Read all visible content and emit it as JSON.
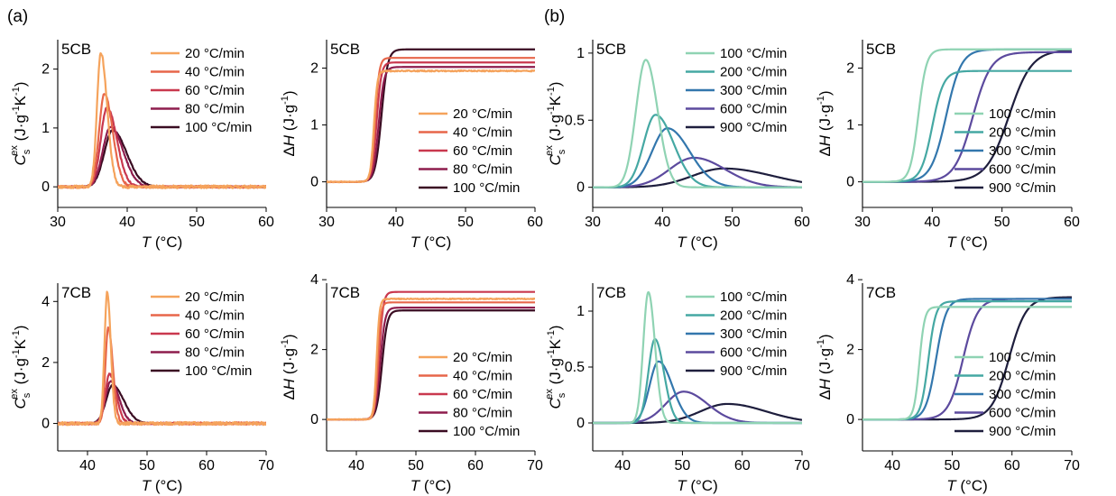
{
  "figure": {
    "panel_a_label": "(a)",
    "panel_b_label": "(b)"
  },
  "chart_data": [
    {
      "id": "a-5cb-cp",
      "type": "line",
      "panel": "(a)",
      "sample": "5CB",
      "xlabel": "T (°C)",
      "ylabel": "Cs ex (J·g-1K-1)",
      "xlim": [
        30,
        60
      ],
      "ylim": [
        -0.35,
        2.5
      ],
      "xticks": [
        30,
        40,
        50,
        60
      ],
      "yticks": [
        0,
        1,
        2
      ],
      "legend_position": "top-right",
      "grid": false,
      "series": [
        {
          "name": "20 °C/min",
          "color": "#f5a35c",
          "kind": "peak",
          "peak_x": 36.2,
          "peak_y": 2.28,
          "width_left": 0.55,
          "width_right": 0.9,
          "noise": 0.025
        },
        {
          "name": "40 °C/min",
          "color": "#e7664a",
          "kind": "peak",
          "peak_x": 36.7,
          "peak_y": 1.58,
          "width_left": 0.75,
          "width_right": 1.2,
          "noise": 0.018
        },
        {
          "name": "60 °C/min",
          "color": "#c9384e",
          "kind": "peak",
          "peak_x": 37.1,
          "peak_y": 1.35,
          "width_left": 0.9,
          "width_right": 1.4,
          "noise": 0.014
        },
        {
          "name": "80 °C/min",
          "color": "#8e1d4d",
          "kind": "peak",
          "peak_x": 37.6,
          "peak_y": 1.02,
          "width_left": 1.1,
          "width_right": 1.8,
          "noise": 0.01
        },
        {
          "name": "100 °C/min",
          "color": "#3a0c22",
          "kind": "peak",
          "peak_x": 37.9,
          "peak_y": 0.96,
          "width_left": 1.2,
          "width_right": 2.0,
          "noise": 0.008
        }
      ]
    },
    {
      "id": "a-5cb-h",
      "type": "line",
      "panel": "(a)",
      "sample": "5CB",
      "xlabel": "T (°C)",
      "ylabel": "ΔH (J·g-1)",
      "xlim": [
        30,
        60
      ],
      "ylim": [
        -0.45,
        2.5
      ],
      "xticks": [
        30,
        40,
        50,
        60
      ],
      "yticks": [
        0,
        1,
        2
      ],
      "legend_position": "bottom-right",
      "grid": false,
      "series": [
        {
          "name": "20 °C/min",
          "color": "#f5a35c",
          "kind": "sigmoid",
          "mid_x": 36.8,
          "width": 0.55,
          "plateau": 1.95,
          "noise": 0.01
        },
        {
          "name": "40 °C/min",
          "color": "#e7664a",
          "kind": "sigmoid",
          "mid_x": 37.0,
          "width": 0.65,
          "plateau": 2.18,
          "noise": 0.0
        },
        {
          "name": "60 °C/min",
          "color": "#c9384e",
          "kind": "sigmoid",
          "mid_x": 37.2,
          "width": 0.75,
          "plateau": 2.1,
          "noise": 0.0
        },
        {
          "name": "80 °C/min",
          "color": "#8e1d4d",
          "kind": "sigmoid",
          "mid_x": 37.5,
          "width": 0.85,
          "plateau": 2.02,
          "noise": 0.0
        },
        {
          "name": "100 °C/min",
          "color": "#3a0c22",
          "kind": "sigmoid",
          "mid_x": 37.9,
          "width": 1.0,
          "plateau": 2.33,
          "noise": 0.0
        }
      ]
    },
    {
      "id": "b-5cb-cp",
      "type": "line",
      "panel": "(b)",
      "sample": "5CB",
      "xlabel": "T (°C)",
      "ylabel": "Cs ex (J·g-1K-1)",
      "xlim": [
        30,
        60
      ],
      "ylim": [
        -0.15,
        1.1
      ],
      "xticks": [
        30,
        40,
        50,
        60
      ],
      "yticks": [
        0,
        0.5,
        1
      ],
      "legend_position": "top-right",
      "grid": false,
      "series": [
        {
          "name": "100 °C/min",
          "color": "#8fd3b3",
          "kind": "peak",
          "peak_x": 37.6,
          "peak_y": 0.95,
          "width_left": 1.4,
          "width_right": 1.7,
          "noise": 0.0
        },
        {
          "name": "200 °C/min",
          "color": "#45a8a3",
          "kind": "peak",
          "peak_x": 39.0,
          "peak_y": 0.54,
          "width_left": 1.7,
          "width_right": 2.6,
          "noise": 0.0
        },
        {
          "name": "300 °C/min",
          "color": "#3377ad",
          "kind": "peak",
          "peak_x": 40.7,
          "peak_y": 0.44,
          "width_left": 2.2,
          "width_right": 3.2,
          "noise": 0.0
        },
        {
          "name": "600 °C/min",
          "color": "#5c4a9e",
          "kind": "peak",
          "peak_x": 44.5,
          "peak_y": 0.22,
          "width_left": 3.5,
          "width_right": 4.5,
          "noise": 0.0
        },
        {
          "name": "900 °C/min",
          "color": "#1e1e3d",
          "kind": "peak",
          "peak_x": 48.8,
          "peak_y": 0.14,
          "width_left": 4.5,
          "width_right": 7.0,
          "noise": 0.0
        }
      ]
    },
    {
      "id": "b-5cb-h",
      "type": "line",
      "panel": "(b)",
      "sample": "5CB",
      "xlabel": "T (°C)",
      "ylabel": "ΔH (J·g-1)",
      "xlim": [
        30,
        60
      ],
      "ylim": [
        -0.45,
        2.5
      ],
      "xticks": [
        30,
        40,
        50,
        60
      ],
      "yticks": [
        0,
        1,
        2
      ],
      "legend_position": "bottom-right",
      "grid": false,
      "series": [
        {
          "name": "100 °C/min",
          "color": "#8fd3b3",
          "kind": "sigmoid",
          "mid_x": 38.0,
          "width": 1.3,
          "plateau": 2.33,
          "noise": 0.0
        },
        {
          "name": "200 °C/min",
          "color": "#45a8a3",
          "kind": "sigmoid",
          "mid_x": 40.0,
          "width": 1.8,
          "plateau": 1.95,
          "noise": 0.0
        },
        {
          "name": "300 °C/min",
          "color": "#3377ad",
          "kind": "sigmoid",
          "mid_x": 42.0,
          "width": 2.4,
          "plateau": 2.33,
          "noise": 0.0
        },
        {
          "name": "600 °C/min",
          "color": "#5c4a9e",
          "kind": "sigmoid",
          "mid_x": 45.8,
          "width": 2.9,
          "plateau": 2.28,
          "noise": 0.0
        },
        {
          "name": "900 °C/min",
          "color": "#1e1e3d",
          "kind": "sigmoid",
          "mid_x": 51.0,
          "width": 3.6,
          "plateau": 2.32,
          "noise": 0.0
        }
      ]
    },
    {
      "id": "a-7cb-cp",
      "type": "line",
      "panel": "(a)",
      "sample": "7CB",
      "xlabel": "T (°C)",
      "ylabel": "Cs ex (J·g-1K-1)",
      "xlim": [
        35,
        70
      ],
      "ylim": [
        -0.9,
        4.6
      ],
      "xticks": [
        40,
        50,
        60,
        70
      ],
      "yticks": [
        0,
        2,
        4
      ],
      "legend_position": "top-right",
      "grid": false,
      "series": [
        {
          "name": "20 °C/min",
          "color": "#f5a35c",
          "kind": "peak",
          "peak_x": 43.3,
          "peak_y": 4.3,
          "width_left": 0.45,
          "width_right": 0.6,
          "noise": 0.05
        },
        {
          "name": "40 °C/min",
          "color": "#e7664a",
          "kind": "peak",
          "peak_x": 43.5,
          "peak_y": 3.15,
          "width_left": 0.5,
          "width_right": 0.75,
          "noise": 0.04
        },
        {
          "name": "60 °C/min",
          "color": "#c9384e",
          "kind": "peak",
          "peak_x": 43.7,
          "peak_y": 1.62,
          "width_left": 0.7,
          "width_right": 1.1,
          "noise": 0.03
        },
        {
          "name": "80 °C/min",
          "color": "#8e1d4d",
          "kind": "peak",
          "peak_x": 43.9,
          "peak_y": 1.38,
          "width_left": 0.9,
          "width_right": 1.4,
          "noise": 0.02
        },
        {
          "name": "100 °C/min",
          "color": "#3a0c22",
          "kind": "peak",
          "peak_x": 44.2,
          "peak_y": 1.25,
          "width_left": 1.1,
          "width_right": 1.9,
          "noise": 0.015
        }
      ]
    },
    {
      "id": "a-7cb-h",
      "type": "line",
      "panel": "(a)",
      "sample": "7CB",
      "xlabel": "T (°C)",
      "ylabel": "ΔH (J·g-1)",
      "xlim": [
        35,
        70
      ],
      "ylim": [
        -0.9,
        3.9
      ],
      "xticks": [
        40,
        50,
        60,
        70
      ],
      "yticks": [
        0,
        2,
        4
      ],
      "legend_position": "bottom-right",
      "grid": false,
      "series": [
        {
          "name": "20 °C/min",
          "color": "#f5a35c",
          "kind": "sigmoid",
          "mid_x": 43.4,
          "width": 0.55,
          "plateau": 3.45,
          "noise": 0.012
        },
        {
          "name": "40 °C/min",
          "color": "#e7664a",
          "kind": "sigmoid",
          "mid_x": 43.6,
          "width": 0.6,
          "plateau": 3.35,
          "noise": 0.0
        },
        {
          "name": "60 °C/min",
          "color": "#c9384e",
          "kind": "sigmoid",
          "mid_x": 43.8,
          "width": 0.8,
          "plateau": 3.65,
          "noise": 0.0
        },
        {
          "name": "80 °C/min",
          "color": "#8e1d4d",
          "kind": "sigmoid",
          "mid_x": 44.0,
          "width": 0.9,
          "plateau": 3.2,
          "noise": 0.0
        },
        {
          "name": "100 °C/min",
          "color": "#3a0c22",
          "kind": "sigmoid",
          "mid_x": 44.3,
          "width": 1.0,
          "plateau": 3.12,
          "noise": 0.0
        }
      ]
    },
    {
      "id": "b-7cb-cp",
      "type": "line",
      "panel": "(b)",
      "sample": "7CB",
      "xlabel": "T (°C)",
      "ylabel": "Cs ex (J·g-1K-1)",
      "xlim": [
        35,
        70
      ],
      "ylim": [
        -0.25,
        1.25
      ],
      "xticks": [
        40,
        50,
        60,
        70
      ],
      "yticks": [
        0,
        0.5,
        1
      ],
      "legend_position": "top-right",
      "grid": false,
      "series": [
        {
          "name": "100 °C/min",
          "color": "#8fd3b3",
          "kind": "peak",
          "peak_x": 44.3,
          "peak_y": 1.17,
          "width_left": 0.85,
          "width_right": 1.1,
          "noise": 0.0
        },
        {
          "name": "200 °C/min",
          "color": "#45a8a3",
          "kind": "peak",
          "peak_x": 45.4,
          "peak_y": 0.75,
          "width_left": 1.1,
          "width_right": 1.5,
          "noise": 0.0
        },
        {
          "name": "300 °C/min",
          "color": "#3377ad",
          "kind": "peak",
          "peak_x": 46.0,
          "peak_y": 0.55,
          "width_left": 1.5,
          "width_right": 2.3,
          "noise": 0.0
        },
        {
          "name": "600 °C/min",
          "color": "#5c4a9e",
          "kind": "peak",
          "peak_x": 50.2,
          "peak_y": 0.28,
          "width_left": 3.0,
          "width_right": 4.0,
          "noise": 0.0
        },
        {
          "name": "900 °C/min",
          "color": "#1e1e3d",
          "kind": "peak",
          "peak_x": 57.5,
          "peak_y": 0.17,
          "width_left": 4.5,
          "width_right": 6.5,
          "noise": 0.0
        }
      ]
    },
    {
      "id": "b-7cb-h",
      "type": "line",
      "panel": "(b)",
      "sample": "7CB",
      "xlabel": "T (°C)",
      "ylabel": "ΔH (J·g-1)",
      "xlim": [
        35,
        70
      ],
      "ylim": [
        -0.9,
        3.9
      ],
      "xticks": [
        40,
        50,
        60,
        70
      ],
      "yticks": [
        0,
        2,
        4
      ],
      "legend_position": "bottom-right",
      "grid": false,
      "series": [
        {
          "name": "100 °C/min",
          "color": "#8fd3b3",
          "kind": "sigmoid",
          "mid_x": 44.5,
          "width": 1.0,
          "plateau": 3.22,
          "noise": 0.0
        },
        {
          "name": "200 °C/min",
          "color": "#45a8a3",
          "kind": "sigmoid",
          "mid_x": 46.0,
          "width": 1.4,
          "plateau": 3.38,
          "noise": 0.0
        },
        {
          "name": "300 °C/min",
          "color": "#3377ad",
          "kind": "sigmoid",
          "mid_x": 47.3,
          "width": 1.9,
          "plateau": 3.45,
          "noise": 0.0
        },
        {
          "name": "600 °C/min",
          "color": "#5c4a9e",
          "kind": "sigmoid",
          "mid_x": 51.8,
          "width": 2.7,
          "plateau": 3.45,
          "noise": 0.0
        },
        {
          "name": "900 °C/min",
          "color": "#1e1e3d",
          "kind": "sigmoid",
          "mid_x": 59.5,
          "width": 3.2,
          "plateau": 3.5,
          "noise": 0.0
        }
      ]
    }
  ]
}
